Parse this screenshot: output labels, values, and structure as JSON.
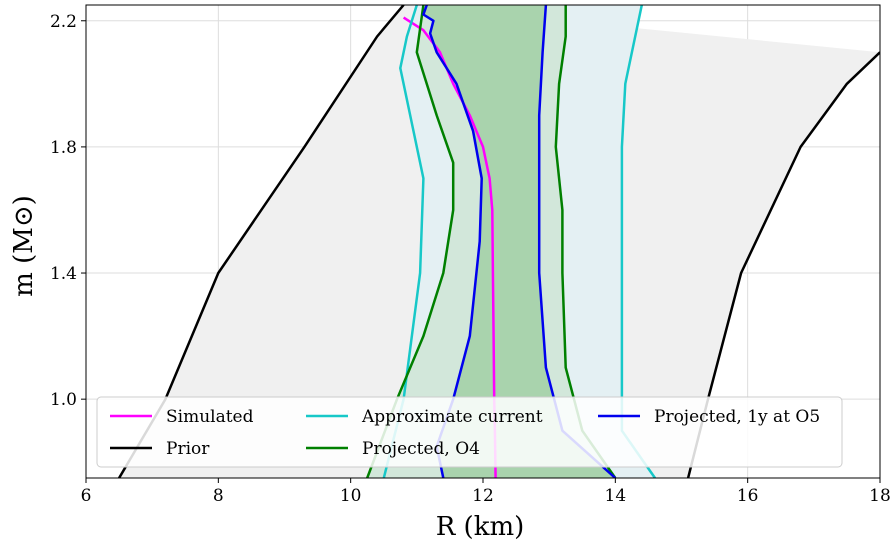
{
  "chart_data": {
    "type": "line",
    "title": "",
    "xlabel": "R (km)",
    "ylabel": "m (M⊙)",
    "xlim": [
      6,
      18
    ],
    "ylim": [
      0.75,
      2.25
    ],
    "xticks": [
      "6",
      "8",
      "10",
      "12",
      "14",
      "16",
      "18"
    ],
    "yticks": [
      "1.0",
      "1.4",
      "1.8",
      "2.2"
    ],
    "grid": true,
    "legend_location": "lower center",
    "series": [
      {
        "name": "Simulated",
        "color": "#ff00ff",
        "points": [
          [
            12.19,
            0.75
          ],
          [
            12.18,
            0.9
          ],
          [
            12.17,
            1.0
          ],
          [
            12.16,
            1.2
          ],
          [
            12.15,
            1.4
          ],
          [
            12.14,
            1.6
          ],
          [
            12.1,
            1.7
          ],
          [
            12.0,
            1.8
          ],
          [
            11.8,
            1.9
          ],
          [
            11.55,
            2.0
          ],
          [
            11.35,
            2.1
          ],
          [
            11.1,
            2.17
          ],
          [
            10.8,
            2.21
          ]
        ]
      },
      {
        "name": "Prior",
        "lower": [
          [
            6.5,
            0.75
          ],
          [
            7.2,
            1.0
          ],
          [
            8.0,
            1.4
          ],
          [
            9.3,
            1.8
          ],
          [
            10.4,
            2.15
          ],
          [
            10.8,
            2.25
          ]
        ],
        "upper": [
          [
            15.1,
            0.75
          ],
          [
            15.4,
            1.0
          ],
          [
            15.9,
            1.4
          ],
          [
            16.8,
            1.8
          ],
          [
            17.5,
            2.0
          ],
          [
            18.0,
            2.1
          ]
        ],
        "color": "#000000",
        "fill": "#f0f0f0"
      },
      {
        "name": "Approximate current",
        "lower": [
          [
            10.5,
            0.75
          ],
          [
            10.8,
            1.0
          ],
          [
            11.05,
            1.4
          ],
          [
            11.1,
            1.7
          ],
          [
            10.9,
            1.9
          ],
          [
            10.75,
            2.05
          ],
          [
            10.85,
            2.15
          ],
          [
            11.0,
            2.25
          ]
        ],
        "upper": [
          [
            14.6,
            0.75
          ],
          [
            14.1,
            0.9
          ],
          [
            14.1,
            1.4
          ],
          [
            14.1,
            1.8
          ],
          [
            14.15,
            2.0
          ],
          [
            14.3,
            2.15
          ],
          [
            14.4,
            2.25
          ]
        ],
        "color": "#17c8c8",
        "fill": "#e4f0f3"
      },
      {
        "name": "Projected, O4",
        "lower": [
          [
            10.25,
            0.75
          ],
          [
            10.7,
            1.0
          ],
          [
            11.1,
            1.2
          ],
          [
            11.4,
            1.4
          ],
          [
            11.55,
            1.6
          ],
          [
            11.55,
            1.75
          ],
          [
            11.3,
            1.9
          ],
          [
            11.0,
            2.1
          ],
          [
            11.1,
            2.25
          ]
        ],
        "upper": [
          [
            14.0,
            0.75
          ],
          [
            13.5,
            0.9
          ],
          [
            13.25,
            1.1
          ],
          [
            13.2,
            1.4
          ],
          [
            13.2,
            1.6
          ],
          [
            13.1,
            1.8
          ],
          [
            13.15,
            2.0
          ],
          [
            13.25,
            2.15
          ],
          [
            13.25,
            2.25
          ]
        ],
        "color": "#008000",
        "fill": "#d2e7da"
      },
      {
        "name": "Projected, 1y at O5",
        "lower": [
          [
            11.4,
            0.75
          ],
          [
            11.3,
            0.85
          ],
          [
            11.55,
            1.0
          ],
          [
            11.8,
            1.2
          ],
          [
            11.95,
            1.5
          ],
          [
            11.98,
            1.7
          ],
          [
            11.85,
            1.85
          ],
          [
            11.6,
            2.0
          ],
          [
            11.3,
            2.1
          ],
          [
            11.2,
            2.16
          ],
          [
            11.25,
            2.2
          ],
          [
            11.1,
            2.22
          ],
          [
            11.15,
            2.25
          ]
        ],
        "upper": [
          [
            14.0,
            0.75
          ],
          [
            13.2,
            0.9
          ],
          [
            12.95,
            1.1
          ],
          [
            12.85,
            1.4
          ],
          [
            12.85,
            1.7
          ],
          [
            12.85,
            1.9
          ],
          [
            12.9,
            2.1
          ],
          [
            12.95,
            2.25
          ]
        ],
        "color": "#0000ee",
        "fill": "#a9d3ad"
      }
    ],
    "legend": [
      {
        "label": "Simulated",
        "color": "#ff00ff"
      },
      {
        "label": "Approximate current",
        "color": "#17c8c8"
      },
      {
        "label": "Projected, 1y at O5",
        "color": "#0000ee"
      },
      {
        "label": "Prior",
        "color": "#000000"
      },
      {
        "label": "Projected, O4",
        "color": "#008000"
      }
    ]
  }
}
